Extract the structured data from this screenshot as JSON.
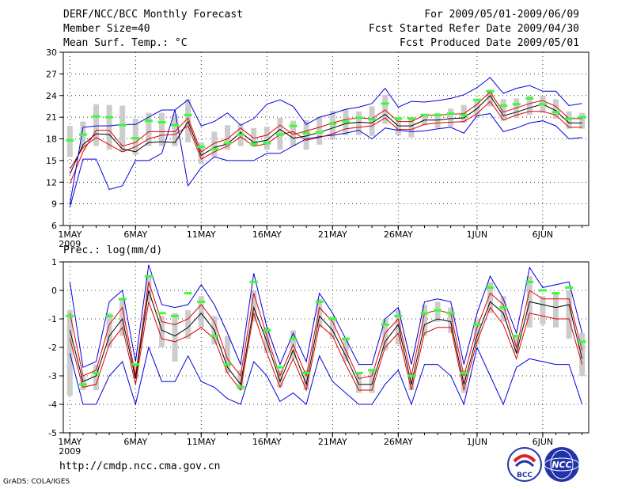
{
  "header": {
    "title": "DERF/NCC/BCC Monthly Forecast",
    "member_size": "Member Size=40",
    "variable": "Mean Surf. Temp.: °C",
    "period": "For 2009/05/01-2009/06/09",
    "start_date": "Fcst Started Refer Date 2009/04/30",
    "produced_date": "Fcst Produced Date 2009/05/01"
  },
  "footer": {
    "url": "http://cmdp.ncc.cma.gov.cn",
    "grads": "GrADS: COLA/IGES",
    "bcc_logo_text": "BCC",
    "ncc_logo_text": "NCC"
  },
  "colors": {
    "median": "#000000",
    "spread": "#e00000",
    "extreme": "#0000dd",
    "box": "#cccccc",
    "obs": "#33ff33"
  },
  "chart_data": [
    {
      "type": "line",
      "name": "temperature",
      "title": "Mean Surf. Temp.: °C",
      "xlabel": "",
      "ylabel": "",
      "days": 40,
      "x_ticks": [
        "1MAY",
        "6MAY",
        "11MAY",
        "16MAY",
        "21MAY",
        "26MAY",
        "1JUN",
        "6JUN"
      ],
      "x_tick_days": [
        1,
        6,
        11,
        16,
        21,
        26,
        32,
        37
      ],
      "year_label": "2009",
      "ylim": [
        6,
        30
      ],
      "y_ticks": [
        6,
        9,
        12,
        15,
        18,
        21,
        24,
        27,
        30
      ],
      "grid": true,
      "series": [
        {
          "name": "max",
          "color": "#0000dd",
          "values": [
            8.5,
            15.2,
            15.2,
            11,
            11.5,
            15,
            15,
            16,
            22,
            11.5,
            14,
            15.5,
            15,
            15,
            15,
            16,
            16,
            17,
            18,
            18.3,
            18.5,
            18.8,
            19.2,
            18,
            19.5,
            19.2,
            19,
            19.1,
            19.4,
            19.6,
            18.8,
            21.2,
            21.5,
            19,
            19.5,
            20.2,
            20.5,
            19.8,
            18,
            18.2
          ]
        },
        {
          "name": "upper",
          "color": "#e00000",
          "values": [
            13.8,
            16.8,
            18.2,
            17.2,
            16.2,
            16.9,
            18,
            18.5,
            18.6,
            19.8,
            15.2,
            16.2,
            17,
            18.3,
            17,
            17.3,
            18.6,
            19,
            17.8,
            18.2,
            18.7,
            19.4,
            19.6,
            19.8,
            20.9,
            19.3,
            19.3,
            20,
            20.2,
            20.3,
            20.4,
            21.5,
            23.2,
            20.6,
            21.3,
            21.8,
            21.8,
            21.3,
            19.6,
            19.6
          ]
        },
        {
          "name": "median",
          "color": "#000000",
          "values": [
            13.1,
            17.2,
            18.7,
            18.6,
            16.6,
            16.2,
            17.5,
            17.6,
            17.5,
            20.4,
            15.7,
            16.8,
            17.3,
            18.9,
            17.5,
            17.8,
            19.3,
            18.1,
            18.4,
            18.9,
            19.5,
            20.1,
            20.3,
            20.2,
            21.4,
            19.8,
            19.8,
            20.6,
            20.6,
            20.8,
            20.9,
            22.2,
            24,
            21.2,
            21.7,
            22.3,
            22.8,
            21.9,
            20.2,
            20.2
          ]
        },
        {
          "name": "lower",
          "color": "#e00000",
          "values": [
            11.8,
            16.2,
            19.2,
            19.2,
            17,
            17.5,
            19,
            19,
            19,
            20.9,
            16.2,
            17.4,
            18,
            19.5,
            18.1,
            18.5,
            19.9,
            18.6,
            19.1,
            19.6,
            20.2,
            20.7,
            20.9,
            20.8,
            22,
            20.4,
            20.4,
            21.3,
            21.3,
            21.4,
            21.5,
            22.8,
            24.5,
            21.7,
            22.3,
            22.9,
            23.3,
            22.5,
            20.8,
            20.8
          ]
        },
        {
          "name": "min",
          "color": "#0000dd",
          "values": [
            8.9,
            19.6,
            19.8,
            19.8,
            20,
            20,
            21,
            22,
            22,
            23.4,
            19.8,
            20.4,
            21.6,
            19.9,
            20.8,
            22.8,
            23.4,
            22.5,
            20,
            21,
            21.5,
            22.1,
            22.4,
            22.9,
            25,
            22.4,
            23.2,
            23.1,
            23.3,
            23.6,
            24.1,
            25.1,
            26.5,
            24.3,
            25,
            25.4,
            24.6,
            24.6,
            22.6,
            22.9
          ]
        }
      ],
      "boxes_low": [
        15.5,
        16.5,
        17,
        16.5,
        16.2,
        15.8,
        17,
        17,
        17,
        17.5,
        14.5,
        15.5,
        16.5,
        17,
        17,
        16.5,
        16.5,
        17,
        16.5,
        17.2,
        17.9,
        18.5,
        18.5,
        18.4,
        20.1,
        18.5,
        18.2,
        19.9,
        19.5,
        19.7,
        20.2,
        20.9,
        22.5,
        20.5,
        20.9,
        21.3,
        21.6,
        20.8,
        19.4,
        19.4
      ],
      "boxes_high": [
        19.8,
        20.4,
        22.8,
        22.7,
        22.6,
        20.8,
        21.6,
        21.6,
        21.4,
        23.5,
        17.5,
        19,
        19.9,
        20.1,
        19.5,
        19.7,
        20.9,
        20.5,
        20.6,
        21,
        21.9,
        22.1,
        21.8,
        22.5,
        24.1,
        21,
        21,
        21.5,
        21.6,
        22.2,
        22.7,
        23.5,
        24.8,
        23.5,
        23.6,
        24,
        24,
        23.5,
        21.8,
        21.6
      ],
      "obs": [
        17.8,
        18.6,
        21.1,
        21,
        19.9,
        18.1,
        20.5,
        20.3,
        19.9,
        21.3,
        16.9,
        16.6,
        17.4,
        18.6,
        17.3,
        17.4,
        18.6,
        19.8,
        18.8,
        18.9,
        20.1,
        20.4,
        20.9,
        20.7,
        22.9,
        20.8,
        20.8,
        21.3,
        21.3,
        21.5,
        21.3,
        23.4,
        24.6,
        22.6,
        22.8,
        23.6,
        22.8,
        21.7,
        20.8,
        21
      ]
    },
    {
      "type": "line",
      "name": "precipitation",
      "title": "Prec.: log(mm/d)",
      "xlabel": "",
      "ylabel": "",
      "days": 40,
      "x_ticks": [
        "1MAY",
        "6MAY",
        "11MAY",
        "16MAY",
        "21MAY",
        "26MAY",
        "1JUN",
        "6JUN"
      ],
      "x_tick_days": [
        1,
        6,
        11,
        16,
        21,
        26,
        32,
        37
      ],
      "year_label": "2009",
      "ylim": [
        -5,
        1
      ],
      "y_ticks": [
        -5,
        -4,
        -3,
        -2,
        -1,
        0,
        1
      ],
      "grid": true,
      "series": [
        {
          "name": "max",
          "color": "#0000dd",
          "values": [
            0.3,
            -2.7,
            -2.5,
            -0.4,
            0,
            -2.5,
            0.9,
            -0.5,
            -0.6,
            -0.5,
            0.2,
            -0.5,
            -1.5,
            -2.6,
            0.6,
            -1.3,
            -2.6,
            -1.5,
            -2.5,
            -0.1,
            -0.8,
            -1.7,
            -2.6,
            -2.6,
            -1,
            -0.6,
            -2.6,
            -0.4,
            -0.3,
            -0.4,
            -2.6,
            -0.8,
            0.5,
            -0.3,
            -1.5,
            0.8,
            0.1,
            0.2,
            0.3,
            -1.5
          ]
        },
        {
          "name": "upper",
          "color": "#e00000",
          "values": [
            -0.8,
            -3,
            -2.8,
            -1.2,
            -0.6,
            -3,
            0.3,
            -1.1,
            -1.2,
            -1,
            -0.5,
            -1.1,
            -2.4,
            -3,
            -0.1,
            -1.6,
            -3,
            -1.9,
            -3,
            -0.6,
            -1.1,
            -2.1,
            -3.1,
            -3,
            -1.5,
            -1,
            -3,
            -0.8,
            -0.7,
            -0.8,
            -3,
            -1.3,
            -0.1,
            -0.5,
            -2,
            0,
            -0.3,
            -0.3,
            -0.3,
            -2.1
          ]
        },
        {
          "name": "median",
          "color": "#000000",
          "values": [
            -1.4,
            -3.2,
            -3,
            -1.6,
            -1,
            -3.1,
            0,
            -1.4,
            -1.6,
            -1.3,
            -0.8,
            -1.4,
            -2.7,
            -3.3,
            -0.6,
            -1.8,
            -3.2,
            -2.1,
            -3.3,
            -0.9,
            -1.4,
            -2.3,
            -3.3,
            -3.3,
            -1.8,
            -1.2,
            -3.3,
            -1.2,
            -1,
            -1.1,
            -3.3,
            -1.6,
            -0.4,
            -0.8,
            -2.2,
            -0.4,
            -0.5,
            -0.6,
            -0.5,
            -2.4
          ]
        },
        {
          "name": "lower",
          "color": "#e00000",
          "values": [
            -1.7,
            -3.4,
            -3.3,
            -1.9,
            -1.3,
            -3.3,
            -0.4,
            -1.7,
            -1.8,
            -1.6,
            -1.3,
            -1.7,
            -2.9,
            -3.5,
            -0.8,
            -2.2,
            -3.4,
            -2.4,
            -3.5,
            -1.2,
            -1.6,
            -2.6,
            -3.5,
            -3.5,
            -2,
            -1.5,
            -3.5,
            -1.5,
            -1.3,
            -1.3,
            -3.5,
            -1.8,
            -0.6,
            -1.2,
            -2.4,
            -0.8,
            -0.9,
            -1,
            -1,
            -2.6
          ]
        },
        {
          "name": "min",
          "color": "#0000dd",
          "values": [
            -2.2,
            -4,
            -4,
            -3,
            -2.5,
            -4,
            -2,
            -3.2,
            -3.2,
            -2.3,
            -3.2,
            -3.4,
            -3.8,
            -4,
            -2.5,
            -3,
            -3.9,
            -3.6,
            -4,
            -2.3,
            -3.2,
            -3.6,
            -4,
            -4,
            -3.3,
            -2.8,
            -4,
            -2.6,
            -2.6,
            -3,
            -4,
            -2,
            -3,
            -4,
            -2.7,
            -2.4,
            -2.5,
            -2.6,
            -2.6,
            -4
          ]
        }
      ],
      "boxes_low": [
        -3.7,
        -3.5,
        -3.5,
        -2,
        -1.6,
        -3.1,
        -0.4,
        -2,
        -2.5,
        -1.7,
        -1.3,
        -1.9,
        -2.9,
        -3.5,
        -1.1,
        -2.2,
        -3.4,
        -2.4,
        -3.5,
        -1.3,
        -1.7,
        -2.5,
        -3.6,
        -3.6,
        -2.1,
        -1.9,
        -3.5,
        -1.6,
        -1.1,
        -1.5,
        -3.6,
        -1.9,
        -0.8,
        -1.1,
        -2.2,
        -1.3,
        -1.2,
        -1.3,
        -1.7,
        -3
      ],
      "boxes_high": [
        -0.7,
        -3,
        -2.6,
        -0.8,
        -0.3,
        -2.6,
        0.5,
        -0.9,
        -0.8,
        -0.7,
        -0.2,
        -0.9,
        -1.6,
        -2.8,
        0,
        -1.3,
        -2.8,
        -1.4,
        -2.8,
        -0.3,
        -0.9,
        -1.7,
        -2.9,
        -2.8,
        -1,
        -0.7,
        -2.9,
        -0.5,
        -0.4,
        -0.6,
        -2.8,
        -1,
        0.3,
        -0.2,
        -1.6,
        0.5,
        -0.2,
        -0.1,
        0,
        -1.5
      ],
      "obs": [
        -0.9,
        -3.3,
        -2.9,
        -0.9,
        -0.3,
        -2.6,
        0.5,
        -0.8,
        -0.9,
        -0.1,
        -0.4,
        -1.6,
        -2.6,
        -3.4,
        0.3,
        -1.4,
        -2.7,
        -1.7,
        -2.9,
        -0.4,
        -1,
        -1.7,
        -2.9,
        -2.8,
        -1.2,
        -0.9,
        -3,
        -0.8,
        -0.7,
        -0.8,
        -2.9,
        -1.2,
        0.1,
        -0.6,
        -1.6,
        0.3,
        0,
        -0.1,
        0.1,
        -1.8
      ]
    }
  ]
}
